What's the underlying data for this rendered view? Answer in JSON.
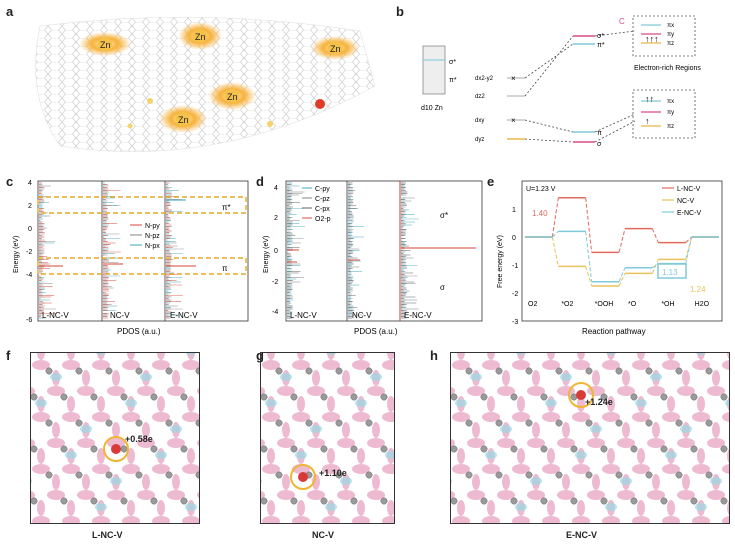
{
  "panel_labels": {
    "a": "a",
    "b": "b",
    "c": "c",
    "d": "d",
    "e": "e",
    "f": "f",
    "g": "g",
    "h": "h"
  },
  "panel_a": {
    "atom_label": "Zn"
  },
  "panel_b": {
    "zn_label": "d10 Zn",
    "sigma_star": "σ*",
    "pi_star": "π*",
    "orbitals": [
      "dx2-y2",
      "dz2",
      "dxy",
      "dyz"
    ],
    "right_sigma_star": "σ*",
    "right_pi": "π*",
    "right_pi_low": "π",
    "right_sigma": "σ",
    "c_tag": "C",
    "box_top": [
      "πx",
      "πy",
      "πz"
    ],
    "box_bottom": [
      "πx",
      "πy",
      "πz"
    ],
    "electron_region": "Electron-rich Regions"
  },
  "panel_c": {
    "ylabel": "Energy (eV)",
    "xlabel": "PDOS (a.u.)",
    "yticks": [
      "4",
      "2",
      "0",
      "-2",
      "-4",
      "-6"
    ],
    "legend": [
      "N-py",
      "N-pz",
      "N-px"
    ],
    "pi_star": "π*",
    "pi": "π",
    "columns": [
      "L-NC-V",
      "NC-V",
      "E-NC-V"
    ]
  },
  "panel_d": {
    "ylabel": "Energy (eV)",
    "xlabel": "PDOS (a.u.)",
    "yticks": [
      "4",
      "2",
      "0",
      "-2",
      "-4"
    ],
    "legend": [
      "C-py",
      "C-pz",
      "C-px",
      "O2-p"
    ],
    "sigma_star": "σ*",
    "sigma": "σ",
    "columns": [
      "L-NC-V",
      "NC-V",
      "E-NC-V"
    ]
  },
  "panel_e": {
    "ylabel": "Free energy (eV)",
    "xlabel": "Reaction pathway",
    "potential": "U=1.23 V",
    "yticks": [
      "1",
      "0",
      "-1",
      "-2",
      "-3"
    ],
    "legend": [
      "L-NC-V",
      "NC-V",
      "E-NC-V"
    ],
    "steps": [
      "O2",
      "*O2",
      "*OOH",
      "*O",
      "*OH",
      "H2O"
    ],
    "annotations": [
      "1.40",
      "1.13",
      "1.24"
    ],
    "colors": {
      "L-NC-V": "#e06a5e",
      "NC-V": "#e8c35a",
      "E-NC-V": "#7fcad8"
    }
  },
  "chart_data": [
    {
      "type": "line",
      "title": "",
      "xlabel": "Reaction pathway",
      "ylabel": "Free energy (eV)",
      "ylim": [
        -3,
        2
      ],
      "categories": [
        "O2",
        "*O2",
        "*OOH",
        "*O",
        "*OH",
        "H2O"
      ],
      "series": [
        {
          "name": "L-NC-V",
          "values": [
            0,
            1.4,
            -0.55,
            0.3,
            -0.2,
            0
          ]
        },
        {
          "name": "NC-V",
          "values": [
            0,
            -1.05,
            -1.75,
            -1.3,
            -0.8,
            0
          ]
        },
        {
          "name": "E-NC-V",
          "values": [
            0,
            0.2,
            -1.6,
            -1.1,
            -0.95,
            0
          ]
        }
      ]
    }
  ],
  "panel_f": {
    "charge": "+0.58e",
    "caption": "L-NC-V"
  },
  "panel_g": {
    "charge": "+1.10e",
    "caption": "NC-V"
  },
  "panel_h": {
    "charge": "+1.24e",
    "caption": "E-NC-V"
  }
}
